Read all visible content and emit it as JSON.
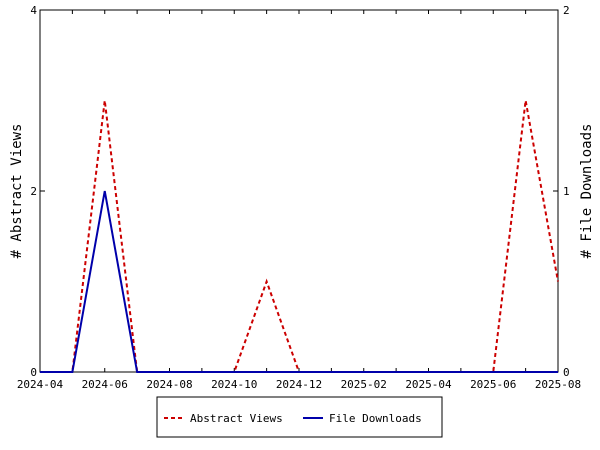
{
  "chart_data": {
    "type": "line",
    "x_ticks": [
      "2024-04",
      "2024-06",
      "2024-08",
      "2024-10",
      "2024-12",
      "2025-02",
      "2025-04",
      "2025-06",
      "2025-08"
    ],
    "x": [
      "2024-04",
      "2024-05",
      "2024-06",
      "2024-07",
      "2024-08",
      "2024-09",
      "2024-10",
      "2024-11",
      "2024-12",
      "2025-01",
      "2025-02",
      "2025-03",
      "2025-04",
      "2025-05",
      "2025-06",
      "2025-07",
      "2025-08"
    ],
    "xlim": [
      "2024-04",
      "2025-08"
    ],
    "y_left": {
      "label": "# Abstract Views",
      "ylim": [
        0,
        4
      ],
      "ticks": [
        "0",
        "2",
        "4"
      ]
    },
    "y_right": {
      "label": "# File Downloads",
      "ylim": [
        0,
        2
      ],
      "ticks": [
        "0",
        "1",
        "2"
      ]
    },
    "grid": false,
    "legend_position": "bottom",
    "series": [
      {
        "name": "Abstract Views",
        "axis": "left",
        "color": "#cc0000",
        "line_style": "dashed",
        "values": [
          0,
          0,
          3,
          0,
          0,
          0,
          0,
          1,
          0,
          0,
          0,
          0,
          0,
          0,
          0,
          3,
          1
        ]
      },
      {
        "name": "File Downloads",
        "axis": "right",
        "color": "#0000aa",
        "line_style": "solid",
        "values": [
          0,
          0,
          1,
          0,
          0,
          0,
          0,
          0,
          0,
          0,
          0,
          0,
          0,
          0,
          0,
          0,
          0
        ]
      }
    ]
  }
}
